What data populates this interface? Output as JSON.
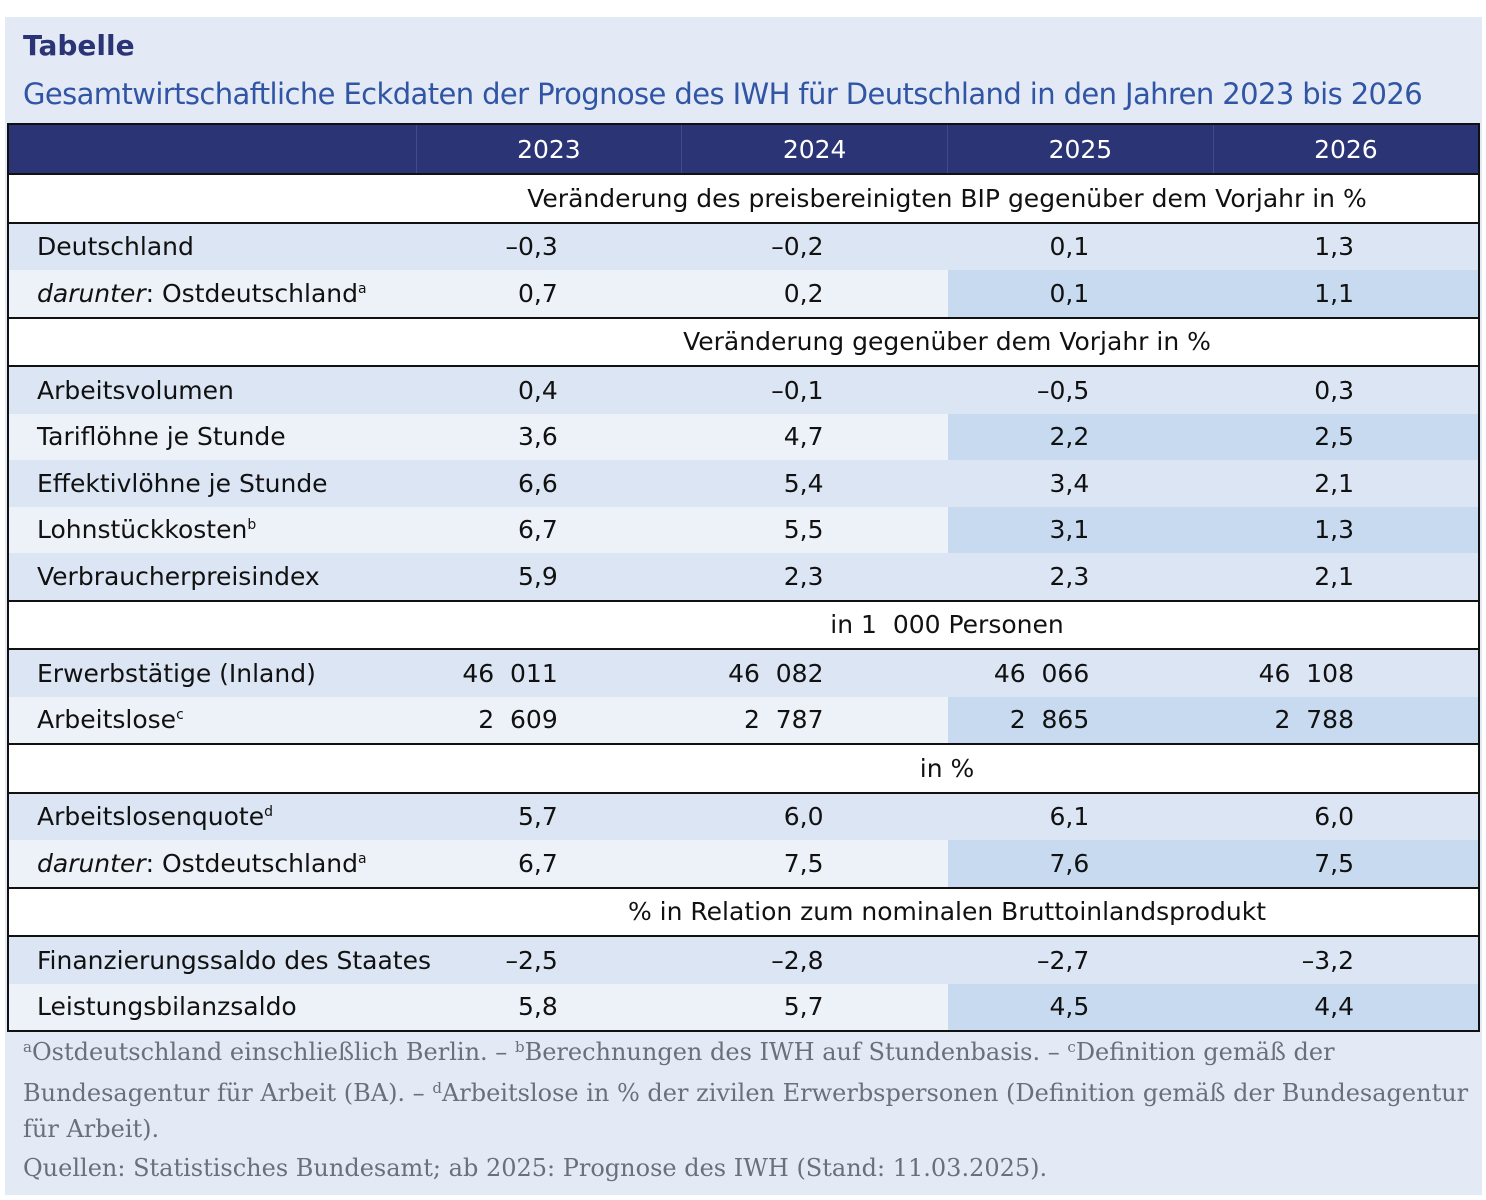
{
  "header": {
    "label": "Tabelle",
    "title": "Gesamtwirtschaftliche Eckdaten der Prognose des IWH für Deutschland in den Jahren 2023 bis 2026"
  },
  "table": {
    "columns": [
      "2023",
      "2024",
      "2025",
      "2026"
    ],
    "sections": [
      {
        "heading": "Veränderung des preisbereinigten BIP gegenüber dem Vorjahr in %",
        "rows": [
          {
            "label": "Deutschland",
            "values": [
              "–0,3",
              "–0,2",
              "0,1",
              "1,3"
            ]
          },
          {
            "label_italic": "darunter",
            "label": ": Ostdeutschland",
            "note": "a",
            "values": [
              "0,7",
              "0,2",
              "0,1",
              "1,1"
            ]
          }
        ]
      },
      {
        "heading": "Veränderung gegenüber dem Vorjahr in %",
        "rows": [
          {
            "label": "Arbeitsvolumen",
            "values": [
              "0,4",
              "–0,1",
              "–0,5",
              "0,3"
            ]
          },
          {
            "label": "Tariflöhne je Stunde",
            "values": [
              "3,6",
              "4,7",
              "2,2",
              "2,5"
            ]
          },
          {
            "label": "Effektivlöhne je Stunde",
            "values": [
              "6,6",
              "5,4",
              "3,4",
              "2,1"
            ]
          },
          {
            "label": "Lohnstückkosten",
            "note": "b",
            "values": [
              "6,7",
              "5,5",
              "3,1",
              "1,3"
            ]
          },
          {
            "label": "Verbraucherpreisindex",
            "values": [
              "5,9",
              "2,3",
              "2,3",
              "2,1"
            ]
          }
        ]
      },
      {
        "heading": "in 1  000 Personen",
        "rows": [
          {
            "label": "Erwerbstätige (Inland)",
            "values": [
              "46  011",
              "46  082",
              "46  066",
              "46  108"
            ]
          },
          {
            "label": "Arbeitslose",
            "note": "c",
            "values": [
              "2  609",
              "2  787",
              "2  865",
              "2  788"
            ]
          }
        ]
      },
      {
        "heading": "in %",
        "rows": [
          {
            "label": "Arbeitslosenquote",
            "note": "d",
            "values": [
              "5,7",
              "6,0",
              "6,1",
              "6,0"
            ]
          },
          {
            "label_italic": "darunter",
            "label": ": Ostdeutschland",
            "note": "a",
            "values": [
              "6,7",
              "7,5",
              "7,6",
              "7,5"
            ]
          }
        ]
      },
      {
        "heading": "% in Relation zum nominalen Bruttoinlandsprodukt",
        "rows": [
          {
            "label": "Finanzierungssaldo des Staates",
            "values": [
              "–2,5",
              "–2,8",
              "–2,7",
              "–3,2"
            ]
          },
          {
            "label": "Leistungsbilanzsaldo",
            "values": [
              "5,8",
              "5,7",
              "4,5",
              "4,4"
            ]
          }
        ]
      }
    ]
  },
  "footnotes": [
    {
      "mark": "a",
      "text": "Ostdeutschland einschließlich Berlin. –"
    },
    {
      "mark": "b",
      "text": "Berechnungen des IWH auf Stundenbasis. –"
    },
    {
      "mark": "c",
      "text": "Definition gemäß der Bundesagentur für Arbeit (BA). –"
    },
    {
      "mark": "d",
      "text": "Arbeitslose in % der zivilen Erwerbspersonen (Definition gemäß der Bundesagentur für Arbeit)."
    }
  ],
  "source": "Quellen: Statistisches Bundesamt; ab 2025: Prognose des IWH (Stand: 11.03.2025)."
}
